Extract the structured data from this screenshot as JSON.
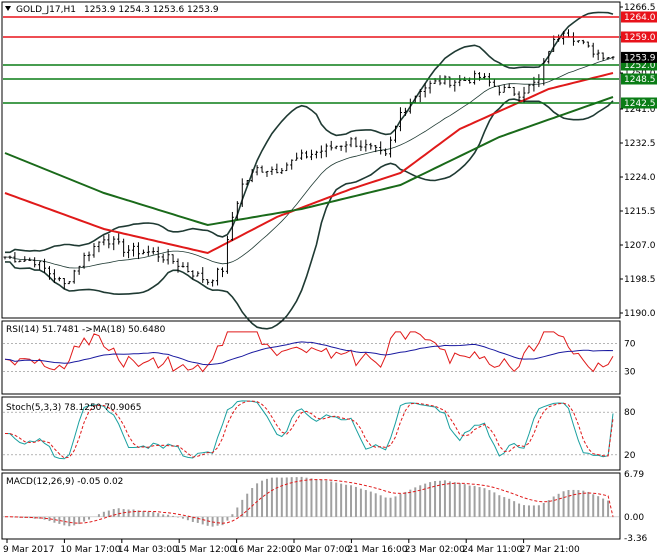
{
  "header": {
    "symbol_text": "GOLD_J17,H1",
    "ohlc_text": "1253.9 1254.3 1253.6 1253.9",
    "rsi_label": "RSI(14) 51.7481 ->MA(18) 50.6480",
    "stoch_label": "Stoch(5,3,3) 78.1250 70.9065",
    "macd_label": "MACD(12,26,9) -0.05 0.02"
  },
  "colors": {
    "resistance": "#e8121a",
    "support": "#0a7d16",
    "price_bars": "#000000",
    "bollinger": "#1f3a33",
    "ma_red": "#e01a1a",
    "ma_green": "#1a6a1a",
    "rsi_line": "#e01a1a",
    "rsi_ma": "#1a1aa0",
    "stoch_main": "#1aa0a0",
    "stoch_signal": "#e01a1a",
    "macd_hist": "#a0a0a0",
    "macd_signal": "#e01a1a"
  },
  "chart_data": [
    {
      "type": "line",
      "name": "price",
      "y_ticks": [
        "1266.5",
        "1259.0",
        "1250.0",
        "1241.0",
        "1232.5",
        "1224.0",
        "1215.5",
        "1207.0",
        "1198.5",
        "1190.0"
      ],
      "x_labels": [
        "9 Mar 2017",
        "10 Mar 17:00",
        "14 Mar 03:00",
        "15 Mar 12:00",
        "16 Mar 22:00",
        "20 Mar 07:00",
        "21 Mar 16:00",
        "23 Mar 02:00",
        "24 Mar 11:00",
        "27 Mar 21:00"
      ],
      "ylim": [
        1189.0,
        1267.5
      ],
      "levels": [
        {
          "value": 1264.0,
          "label": "1264.0",
          "kind": "resistance"
        },
        {
          "value": 1259.0,
          "label": "1259.0",
          "kind": "resistance"
        },
        {
          "value": 1252.0,
          "label": "1252.0",
          "kind": "support"
        },
        {
          "value": 1248.5,
          "label": "1248.5",
          "kind": "support"
        },
        {
          "value": 1242.5,
          "label": "1242.5",
          "kind": "support"
        }
      ],
      "current_price": {
        "value": 1253.9,
        "label": "1253.9"
      },
      "close_anchors": [
        [
          0,
          1204
        ],
        [
          6,
          1203
        ],
        [
          12,
          1197
        ],
        [
          16,
          1204
        ],
        [
          20,
          1209
        ],
        [
          24,
          1206
        ],
        [
          30,
          1205
        ],
        [
          34,
          1203
        ],
        [
          38,
          1200
        ],
        [
          41,
          1198
        ],
        [
          44,
          1201
        ],
        [
          46,
          1214
        ],
        [
          48,
          1222
        ],
        [
          51,
          1226
        ],
        [
          55,
          1226
        ],
        [
          60,
          1229
        ],
        [
          65,
          1231
        ],
        [
          70,
          1233
        ],
        [
          74,
          1231
        ],
        [
          77,
          1229
        ],
        [
          80,
          1240
        ],
        [
          84,
          1246
        ],
        [
          88,
          1248
        ],
        [
          92,
          1248
        ],
        [
          96,
          1249
        ],
        [
          100,
          1246
        ],
        [
          104,
          1245
        ],
        [
          108,
          1248
        ],
        [
          110,
          1256
        ],
        [
          113,
          1261
        ],
        [
          115,
          1259
        ],
        [
          118,
          1256
        ],
        [
          120,
          1255
        ],
        [
          123,
          1254
        ]
      ],
      "bar_count": 124,
      "ma_red_anchors": [
        [
          0,
          1220
        ],
        [
          20,
          1211
        ],
        [
          41,
          1205
        ],
        [
          55,
          1214
        ],
        [
          70,
          1221
        ],
        [
          80,
          1225
        ],
        [
          92,
          1236
        ],
        [
          110,
          1246
        ],
        [
          123,
          1250
        ]
      ],
      "ma_green_anchors": [
        [
          0,
          1230
        ],
        [
          20,
          1220
        ],
        [
          41,
          1212
        ],
        [
          60,
          1216
        ],
        [
          80,
          1222
        ],
        [
          100,
          1234
        ],
        [
          123,
          1244
        ]
      ]
    },
    {
      "type": "line",
      "name": "RSI",
      "y_ticks": [
        "70",
        "30"
      ],
      "ylim": [
        0,
        100
      ],
      "last_values": {
        "rsi": 51.7481,
        "ma": 50.648
      }
    },
    {
      "type": "line",
      "name": "Stochastic",
      "y_ticks": [
        "80",
        "20"
      ],
      "ylim": [
        0,
        100
      ],
      "last_values": {
        "main": 78.125,
        "signal": 70.9065
      }
    },
    {
      "type": "bar",
      "name": "MACD",
      "y_ticks": [
        "6.79",
        "0.00",
        "-3.36"
      ],
      "ylim": [
        -3.36,
        6.79
      ],
      "last_values": {
        "macd": -0.05,
        "signal": 0.02
      }
    }
  ]
}
